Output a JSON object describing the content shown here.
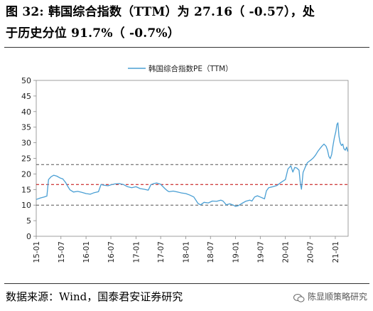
{
  "figure": {
    "caption_line1": "图 32:  韩国综合指数（TTM）为 27.16（ -0.57），处",
    "caption_line2": "于历史分位 91.7%（ -0.7%）",
    "source": "数据来源：Wind，国泰君安证券研究",
    "watermark": "陈显顺策略研究",
    "watermark_icon": "wechat-icon"
  },
  "colors": {
    "series": "#4a9fd4",
    "upper_band": "#555555",
    "median": "#c00000",
    "lower_band": "#555555"
  },
  "chart_data": {
    "type": "line",
    "legend": "韩国综合指数PE（TTM）",
    "legend_position": "top-center",
    "yticks": [
      "0",
      "5",
      "10",
      "15",
      "20",
      "25",
      "30",
      "35",
      "40",
      "45",
      "50"
    ],
    "ylim": [
      0,
      50
    ],
    "xticks": [
      "15-01",
      "15-07",
      "16-01",
      "16-07",
      "17-01",
      "17-07",
      "18-01",
      "18-07",
      "19-01",
      "19-07",
      "20-01",
      "20-07",
      "21-01"
    ],
    "xlim": [
      "2015-01-01",
      "2021-04-05"
    ],
    "grid": false,
    "reference_lines": [
      {
        "kind": "upper-band",
        "value": 23,
        "style": "dashed"
      },
      {
        "kind": "median",
        "value": 16.6,
        "style": "dashed"
      },
      {
        "kind": "lower-band",
        "value": 10,
        "style": "dashed"
      }
    ],
    "series": [
      {
        "name": "韩国综合指数PE（TTM）",
        "points": [
          [
            "2015-01-01",
            11.8
          ],
          [
            "2015-02-01",
            12.3
          ],
          [
            "2015-03-01",
            12.6
          ],
          [
            "2015-03-20",
            12.9
          ],
          [
            "2015-04-01",
            18.2
          ],
          [
            "2015-04-20",
            19.1
          ],
          [
            "2015-05-10",
            19.6
          ],
          [
            "2015-06-01",
            19.3
          ],
          [
            "2015-06-25",
            18.7
          ],
          [
            "2015-07-15",
            18.4
          ],
          [
            "2015-08-05",
            17.2
          ],
          [
            "2015-08-20",
            16.0
          ],
          [
            "2015-09-05",
            14.9
          ],
          [
            "2015-10-01",
            14.2
          ],
          [
            "2015-11-01",
            14.4
          ],
          [
            "2015-12-01",
            14.1
          ],
          [
            "2016-01-01",
            13.7
          ],
          [
            "2016-02-01",
            13.5
          ],
          [
            "2016-03-01",
            14.0
          ],
          [
            "2016-04-01",
            14.3
          ],
          [
            "2016-04-20",
            16.6
          ],
          [
            "2016-05-10",
            16.4
          ],
          [
            "2016-06-10",
            16.2
          ],
          [
            "2016-07-01",
            16.5
          ],
          [
            "2016-08-01",
            16.8
          ],
          [
            "2016-09-01",
            16.9
          ],
          [
            "2016-10-01",
            16.6
          ],
          [
            "2016-11-01",
            15.9
          ],
          [
            "2016-12-01",
            15.6
          ],
          [
            "2017-01-01",
            15.9
          ],
          [
            "2017-02-01",
            15.3
          ],
          [
            "2017-03-01",
            15.1
          ],
          [
            "2017-04-01",
            14.8
          ],
          [
            "2017-04-20",
            16.5
          ],
          [
            "2017-05-10",
            16.9
          ],
          [
            "2017-06-01",
            17.1
          ],
          [
            "2017-07-01",
            16.7
          ],
          [
            "2017-08-01",
            15.3
          ],
          [
            "2017-08-20",
            14.6
          ],
          [
            "2017-09-01",
            14.3
          ],
          [
            "2017-10-01",
            14.5
          ],
          [
            "2017-11-01",
            14.2
          ],
          [
            "2017-12-01",
            13.9
          ],
          [
            "2018-01-01",
            13.7
          ],
          [
            "2018-02-01",
            13.2
          ],
          [
            "2018-03-01",
            12.6
          ],
          [
            "2018-04-01",
            10.5
          ],
          [
            "2018-04-20",
            10.1
          ],
          [
            "2018-05-15",
            10.9
          ],
          [
            "2018-06-15",
            10.7
          ],
          [
            "2018-07-15",
            11.3
          ],
          [
            "2018-08-15",
            11.2
          ],
          [
            "2018-09-15",
            11.6
          ],
          [
            "2018-10-01",
            11.3
          ],
          [
            "2018-10-25",
            10.1
          ],
          [
            "2018-11-20",
            10.4
          ],
          [
            "2018-12-15",
            10.0
          ],
          [
            "2019-01-01",
            9.6
          ],
          [
            "2019-01-20",
            9.8
          ],
          [
            "2019-02-15",
            10.5
          ],
          [
            "2019-03-15",
            11.2
          ],
          [
            "2019-04-15",
            11.6
          ],
          [
            "2019-05-01",
            11.3
          ],
          [
            "2019-05-20",
            12.6
          ],
          [
            "2019-06-10",
            13.0
          ],
          [
            "2019-07-01",
            12.6
          ],
          [
            "2019-08-01",
            12.0
          ],
          [
            "2019-08-15",
            14.6
          ],
          [
            "2019-09-01",
            15.6
          ],
          [
            "2019-10-01",
            15.9
          ],
          [
            "2019-11-01",
            16.3
          ],
          [
            "2019-12-01",
            17.3
          ],
          [
            "2020-01-01",
            18.2
          ],
          [
            "2020-01-20",
            21.6
          ],
          [
            "2020-02-10",
            22.6
          ],
          [
            "2020-02-25",
            20.6
          ],
          [
            "2020-03-10",
            22.1
          ],
          [
            "2020-03-25",
            21.9
          ],
          [
            "2020-04-10",
            21.2
          ],
          [
            "2020-04-20",
            16.9
          ],
          [
            "2020-04-28",
            15.1
          ],
          [
            "2020-05-10",
            20.5
          ],
          [
            "2020-05-25",
            22.1
          ],
          [
            "2020-06-10",
            23.6
          ],
          [
            "2020-06-25",
            24.1
          ],
          [
            "2020-07-10",
            24.6
          ],
          [
            "2020-07-25",
            25.2
          ],
          [
            "2020-08-10",
            26.1
          ],
          [
            "2020-08-25",
            27.2
          ],
          [
            "2020-09-10",
            28.1
          ],
          [
            "2020-09-25",
            28.9
          ],
          [
            "2020-10-10",
            29.6
          ],
          [
            "2020-10-25",
            28.9
          ],
          [
            "2020-11-05",
            27.6
          ],
          [
            "2020-11-15",
            25.6
          ],
          [
            "2020-11-25",
            24.9
          ],
          [
            "2020-12-05",
            26.2
          ],
          [
            "2020-12-15",
            29.1
          ],
          [
            "2020-12-25",
            31.6
          ],
          [
            "2021-01-05",
            33.6
          ],
          [
            "2021-01-12",
            35.8
          ],
          [
            "2021-01-20",
            36.4
          ],
          [
            "2021-01-28",
            32.1
          ],
          [
            "2021-02-05",
            30.1
          ],
          [
            "2021-02-15",
            29.1
          ],
          [
            "2021-02-25",
            29.6
          ],
          [
            "2021-03-05",
            28.1
          ],
          [
            "2021-03-15",
            27.6
          ],
          [
            "2021-03-25",
            28.6
          ],
          [
            "2021-04-02",
            27.2
          ]
        ]
      }
    ]
  }
}
